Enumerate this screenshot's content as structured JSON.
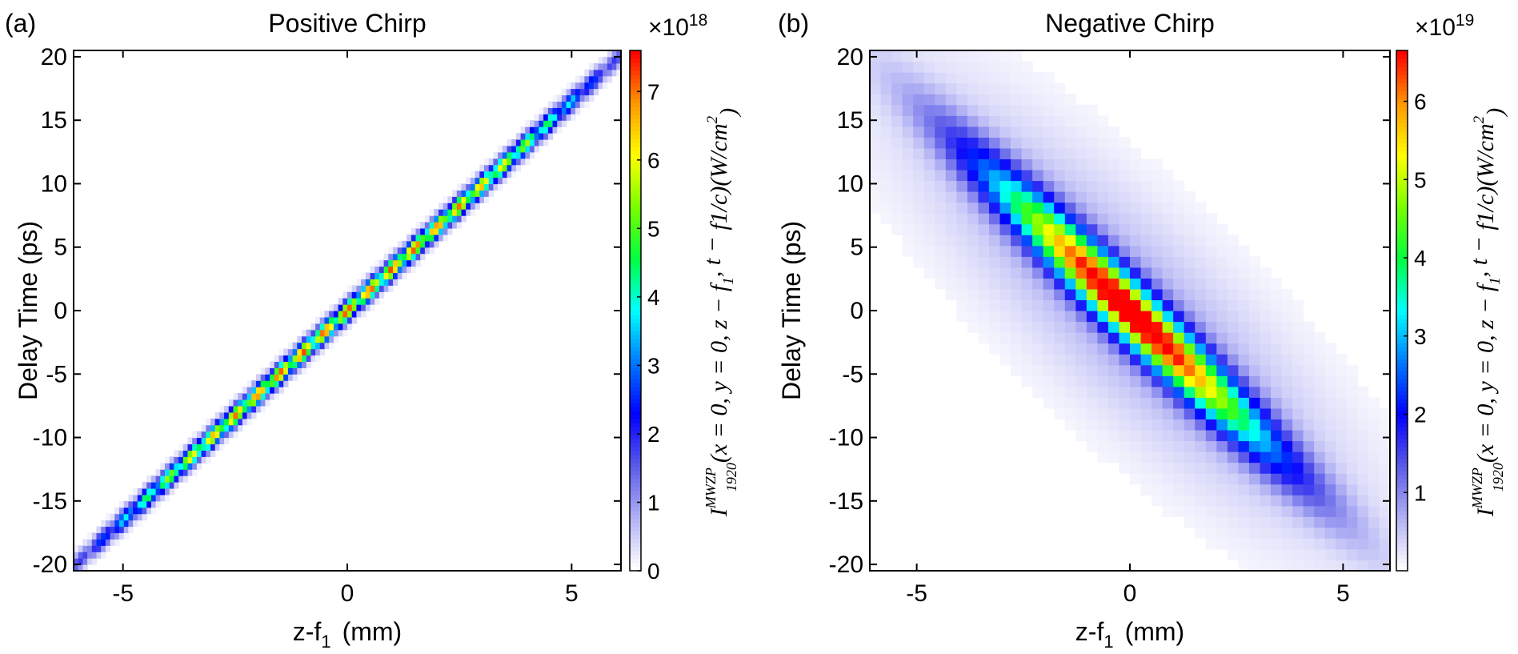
{
  "chart_data": [
    {
      "type": "heatmap",
      "panel_label": "(a)",
      "title": "Positive Chirp",
      "xlabel_main": "z-f",
      "xlabel_sub": "1",
      "xlabel_unit": "(mm)",
      "ylabel": "Delay Time (ps)",
      "xlim": [
        -6.1,
        6.1
      ],
      "ylim": [
        -20.5,
        20.5
      ],
      "xticks": [
        -5,
        0,
        5
      ],
      "xtick_labels": [
        "-5",
        "0",
        "5"
      ],
      "yticks": [
        -20,
        -15,
        -10,
        -5,
        0,
        5,
        10,
        15,
        20
      ],
      "ytick_labels": [
        "-20",
        "-15",
        "-10",
        "-5",
        "0",
        "5",
        "10",
        "15",
        "20"
      ],
      "peak_intensity": 7.6e+18,
      "relation": "delay ≈ +3.3 ps/mm × (z-f1)",
      "colorbar": {
        "range": [
          0,
          7.6
        ],
        "exponent_label": "×10",
        "exponent": "18",
        "ticks": [
          0,
          1,
          2,
          3,
          4,
          5,
          6,
          7
        ],
        "tick_labels": [
          "0",
          "1",
          "2",
          "3",
          "4",
          "5",
          "6",
          "7"
        ],
        "label": "I_1920^MWZP(x = 0, y = 0, z − f1, t − f1/c)(W/cm^2)"
      }
    },
    {
      "type": "heatmap",
      "panel_label": "(b)",
      "title": "Negative Chirp",
      "xlabel_main": "z-f",
      "xlabel_sub": "1",
      "xlabel_unit": "(mm)",
      "ylabel": "Delay Time (ps)",
      "xlim": [
        -6.1,
        6.1
      ],
      "ylim": [
        -20.5,
        20.5
      ],
      "xticks": [
        -5,
        0,
        5
      ],
      "xtick_labels": [
        "-5",
        "0",
        "5"
      ],
      "yticks": [
        -20,
        -15,
        -10,
        -5,
        0,
        5,
        10,
        15,
        20
      ],
      "ytick_labels": [
        "-20",
        "-15",
        "-10",
        "-5",
        "0",
        "5",
        "10",
        "15",
        "20"
      ],
      "peak_intensity": 6.6e+19,
      "relation": "delay ≈ −3.3 ps/mm × (z-f1)",
      "colorbar": {
        "range": [
          0,
          6.65
        ],
        "exponent_label": "×10",
        "exponent": "19",
        "ticks": [
          1,
          2,
          3,
          4,
          5,
          6
        ],
        "tick_labels": [
          "1",
          "2",
          "3",
          "4",
          "5",
          "6"
        ],
        "label": "I_1920^MWZP(x = 0, y = 0, z − f1, t − f1/c)(W/cm^2)"
      }
    }
  ],
  "colormap": [
    "#ffffff",
    "#b0b0f4",
    "#5a5ae8",
    "#0000ff",
    "#0078ff",
    "#00ffff",
    "#00ff40",
    "#78ff00",
    "#ffff00",
    "#ff9900",
    "#ff0000"
  ],
  "cbar_text": {
    "I": "I",
    "sub": "1920",
    "sup": "MWZP",
    "args": "(x = 0, y = 0, z − f",
    "one": "1",
    "mid": ", t −",
    "frac_num": "f",
    "frac_den": "c",
    "close": ")",
    "unit_open": "(W/cm",
    "two": "2",
    "unit_close": ")"
  }
}
